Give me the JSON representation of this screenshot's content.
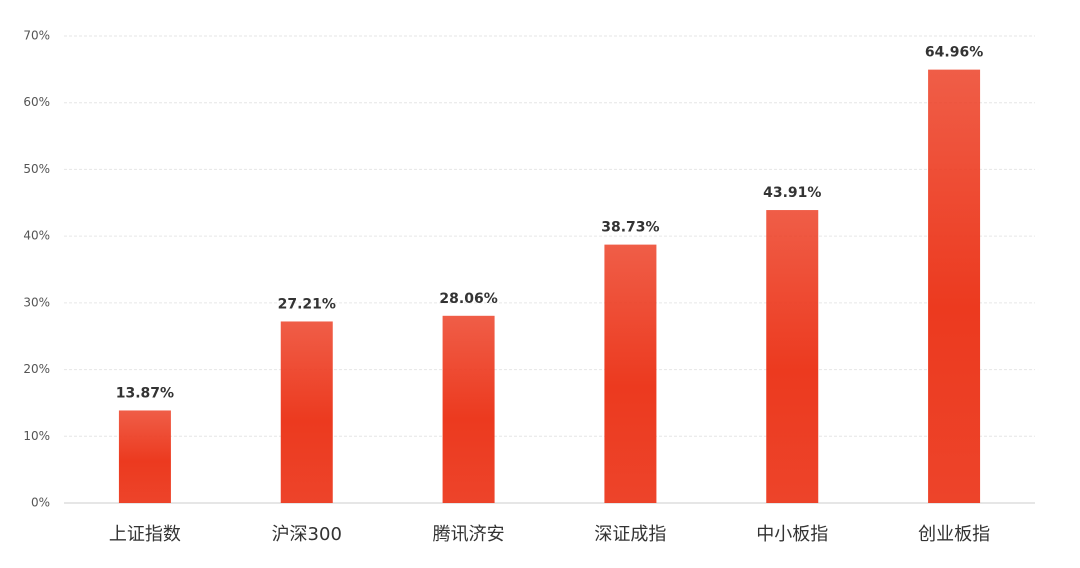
{
  "chart_data": {
    "type": "bar",
    "categories": [
      "上证指数",
      "沪深300",
      "腾讯济安",
      "深证成指",
      "中小板指",
      "创业板指"
    ],
    "values": [
      13.87,
      27.21,
      28.06,
      38.73,
      43.91,
      64.96
    ],
    "value_labels": [
      "13.87%",
      "27.21%",
      "28.06%",
      "38.73%",
      "43.91%",
      "64.96%"
    ],
    "color": "#ec3a1f",
    "ylim": [
      0,
      70
    ],
    "yticks": [
      {
        "value": 0,
        "label": "0%"
      },
      {
        "value": 10,
        "label": "10%"
      },
      {
        "value": 20,
        "label": "20%"
      },
      {
        "value": 30,
        "label": "30%"
      },
      {
        "value": 40,
        "label": "40%"
      },
      {
        "value": 50,
        "label": "50%"
      },
      {
        "value": 60,
        "label": "60%"
      },
      {
        "value": 70,
        "label": "70%"
      }
    ],
    "grid": true
  }
}
